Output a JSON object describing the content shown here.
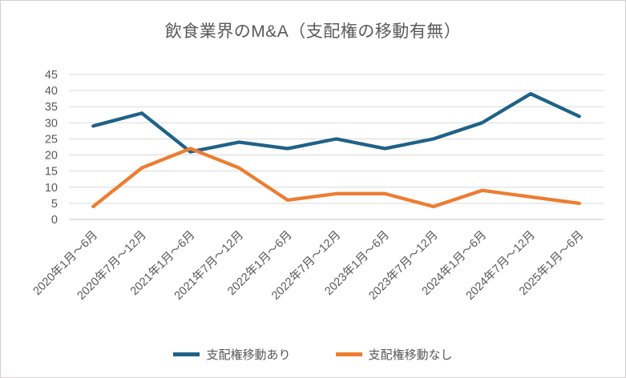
{
  "title": "飲食業界のM&A（支配権の移動有無）",
  "chart_data": {
    "type": "line",
    "title": "飲食業界のM&A（支配権の移動有無）",
    "categories": [
      "2020年1月～6月",
      "2020年7月～12月",
      "2021年1月～6月",
      "2021年7月～12月",
      "2022年1月～6月",
      "2022年7月～12月",
      "2023年1月～6月",
      "2023年7月～12月",
      "2024年1月～6月",
      "2024年7月～12月",
      "2025年1月～6月"
    ],
    "series": [
      {
        "name": "支配権移動あり",
        "color": "#1F6287",
        "values": [
          29,
          33,
          21,
          24,
          22,
          25,
          22,
          25,
          30,
          39,
          32
        ]
      },
      {
        "name": "支配権移動なし",
        "color": "#ED7D31",
        "values": [
          4,
          16,
          22,
          16,
          6,
          8,
          8,
          4,
          9,
          7,
          5
        ]
      }
    ],
    "xlabel": "",
    "ylabel": "",
    "ylim": [
      0,
      45
    ],
    "ytick_step": 5,
    "grid": "horizontal-only",
    "legend_position": "bottom",
    "x_label_rotation_deg": -45
  },
  "colors": {
    "grid": "#D9D9D9",
    "axis": "#C6C6C6",
    "text": "#595959",
    "border": "#D0CECE",
    "background": "#FFFFFF"
  }
}
